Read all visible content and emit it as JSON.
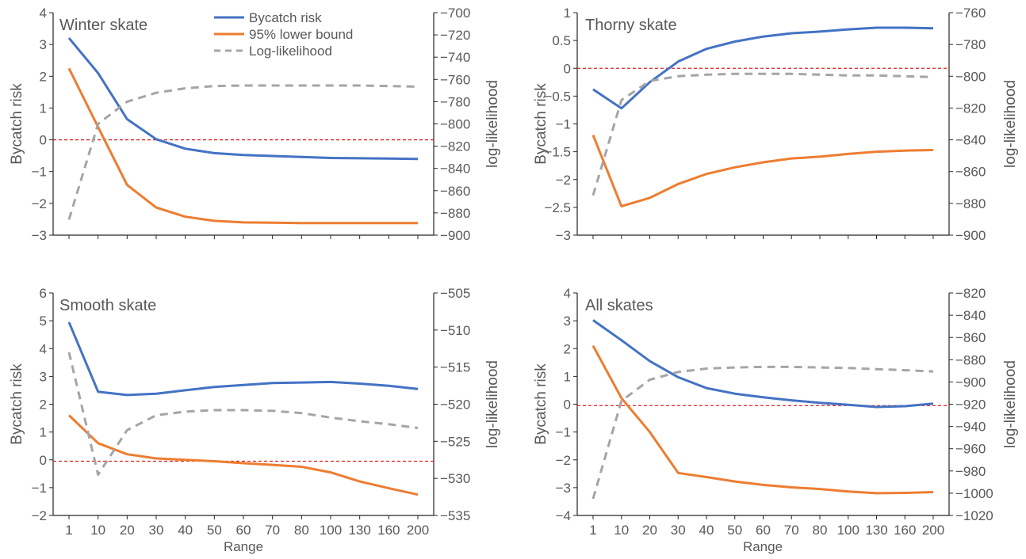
{
  "colors": {
    "bycatch": "#4472C4",
    "lower": "#ED7D31",
    "loglik": "#A5A5A5",
    "loglik_dark": "#7F7F7F",
    "zero_line": "#E02020",
    "axis": "#262626",
    "text": "#595959"
  },
  "legend": {
    "placement": "top-center (inside Winter skate panel)",
    "items": [
      "Bycatch risk",
      "95% lower bound",
      "Log-likelihood"
    ]
  },
  "chart_data": [
    {
      "type": "line",
      "title": "Winter skate",
      "xlabel": "",
      "ylabel": "Bycatch risk",
      "y2label": "log-likelihood",
      "categories": [
        "1",
        "10",
        "20",
        "30",
        "40",
        "50",
        "60",
        "70",
        "80",
        "100",
        "130",
        "160",
        "200"
      ],
      "ylim": [
        -3,
        4
      ],
      "yticks": [
        -3,
        -2,
        -1,
        0,
        1,
        2,
        3,
        4
      ],
      "y2lim": [
        -900,
        -700
      ],
      "y2ticks": [
        -900,
        -880,
        -860,
        -840,
        -820,
        -800,
        -780,
        -760,
        -740,
        -720,
        -700
      ],
      "reference_line_y": 0,
      "series": [
        {
          "name": "Bycatch risk",
          "axis": "left",
          "values": [
            3.2,
            2.1,
            0.65,
            0.02,
            -0.28,
            -0.42,
            -0.48,
            -0.51,
            -0.54,
            -0.57,
            -0.58,
            -0.59,
            -0.6
          ]
        },
        {
          "name": "95% lower bound",
          "axis": "left",
          "values": [
            2.25,
            0.4,
            -1.42,
            -2.13,
            -2.42,
            -2.55,
            -2.6,
            -2.61,
            -2.62,
            -2.62,
            -2.62,
            -2.62,
            -2.62
          ]
        },
        {
          "name": "Log-likelihood",
          "axis": "right",
          "values": [
            -886,
            -800,
            -780,
            -772,
            -768,
            -766,
            -765.5,
            -765.5,
            -765.5,
            -765.5,
            -765.5,
            -766,
            -766.5
          ]
        }
      ]
    },
    {
      "type": "line",
      "title": "Thorny skate",
      "xlabel": "",
      "ylabel": "Bycatch risk",
      "y2label": "log-likelihood",
      "categories": [
        "1",
        "10",
        "20",
        "30",
        "40",
        "50",
        "60",
        "70",
        "80",
        "100",
        "130",
        "160",
        "200"
      ],
      "ylim": [
        -3,
        1
      ],
      "yticks": [
        -3,
        -2.5,
        -2,
        -1.5,
        -1,
        -0.5,
        0,
        0.5,
        1
      ],
      "y2lim": [
        -900,
        -760
      ],
      "y2ticks": [
        -900,
        -880,
        -860,
        -840,
        -820,
        -800,
        -780,
        -760
      ],
      "reference_line_y": 0,
      "series": [
        {
          "name": "Bycatch risk",
          "axis": "left",
          "values": [
            -0.38,
            -0.72,
            -0.25,
            0.12,
            0.35,
            0.48,
            0.57,
            0.63,
            0.66,
            0.7,
            0.73,
            0.73,
            0.72
          ]
        },
        {
          "name": "95% lower bound",
          "axis": "left",
          "values": [
            -1.2,
            -2.48,
            -2.33,
            -2.08,
            -1.9,
            -1.78,
            -1.69,
            -1.62,
            -1.59,
            -1.54,
            -1.5,
            -1.48,
            -1.47
          ]
        },
        {
          "name": "Log-likelihood",
          "axis": "right",
          "values": [
            -875,
            -815,
            -803,
            -800,
            -799,
            -798.5,
            -798.5,
            -798.5,
            -799,
            -799.5,
            -799.5,
            -800,
            -800.5
          ]
        }
      ]
    },
    {
      "type": "line",
      "title": "Smooth skate",
      "xlabel": "Range",
      "ylabel": "Bycatch risk",
      "y2label": "log-likelihood",
      "categories": [
        "1",
        "10",
        "20",
        "30",
        "40",
        "50",
        "60",
        "70",
        "80",
        "100",
        "130",
        "160",
        "200"
      ],
      "ylim": [
        -2,
        6
      ],
      "yticks": [
        -2,
        -1,
        0,
        1,
        2,
        3,
        4,
        5,
        6
      ],
      "y2lim": [
        -535,
        -505
      ],
      "y2ticks": [
        -535,
        -530,
        -525,
        -520,
        -515,
        -510,
        -505
      ],
      "reference_line_y": -0.05,
      "series": [
        {
          "name": "Bycatch risk",
          "axis": "left",
          "values": [
            4.95,
            2.45,
            2.33,
            2.38,
            2.5,
            2.62,
            2.69,
            2.76,
            2.78,
            2.8,
            2.74,
            2.66,
            2.55
          ]
        },
        {
          "name": "95% lower bound",
          "axis": "left",
          "values": [
            1.6,
            0.6,
            0.2,
            0.05,
            0.0,
            -0.05,
            -0.12,
            -0.18,
            -0.25,
            -0.45,
            -0.78,
            -1.02,
            -1.25
          ]
        },
        {
          "name": "Log-likelihood",
          "axis": "right",
          "values": [
            -513,
            -529.5,
            -523.5,
            -521.5,
            -521,
            -520.8,
            -520.8,
            -520.9,
            -521.2,
            -521.8,
            -522.3,
            -522.7,
            -523.2
          ]
        }
      ]
    },
    {
      "type": "line",
      "title": "All skates",
      "xlabel": "Range",
      "ylabel": "Bycatch risk",
      "y2label": "log-likelihood",
      "categories": [
        "1",
        "10",
        "20",
        "30",
        "40",
        "50",
        "60",
        "70",
        "80",
        "100",
        "130",
        "160",
        "200"
      ],
      "ylim": [
        -4,
        4
      ],
      "yticks": [
        -4,
        -3,
        -2,
        -1,
        0,
        1,
        2,
        3,
        4
      ],
      "y2lim": [
        -1020,
        -820
      ],
      "y2ticks": [
        -1020,
        -1000,
        -980,
        -960,
        -940,
        -920,
        -900,
        -880,
        -860,
        -840,
        -820
      ],
      "reference_line_y": -0.05,
      "series": [
        {
          "name": "Bycatch risk",
          "axis": "left",
          "values": [
            3.02,
            2.3,
            1.55,
            0.97,
            0.58,
            0.38,
            0.25,
            0.14,
            0.05,
            -0.02,
            -0.1,
            -0.07,
            0.02
          ]
        },
        {
          "name": "95% lower bound",
          "axis": "left",
          "values": [
            2.1,
            0.22,
            -1.0,
            -2.47,
            -2.62,
            -2.78,
            -2.9,
            -2.99,
            -3.05,
            -3.14,
            -3.2,
            -3.19,
            -3.16
          ]
        },
        {
          "name": "Log-likelihood",
          "axis": "right",
          "values": [
            -1005,
            -917,
            -898,
            -891,
            -888,
            -887,
            -886.5,
            -886.5,
            -887,
            -887.5,
            -888.5,
            -889.5,
            -890.5
          ]
        }
      ]
    }
  ]
}
